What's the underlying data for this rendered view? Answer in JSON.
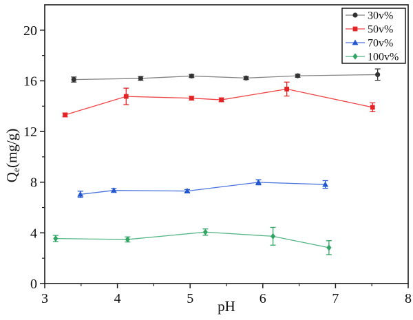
{
  "chart_data": {
    "type": "line",
    "title": "",
    "xlabel": "pH",
    "ylabel": "Qe(mg/g)",
    "ylabel_parts": {
      "base": "Q",
      "sub": "e",
      "rest": "(mg/g)"
    },
    "xlim": [
      3,
      8
    ],
    "ylim": [
      0,
      22
    ],
    "x_ticks": [
      3,
      4,
      5,
      6,
      7,
      8
    ],
    "y_ticks": [
      0,
      4,
      8,
      12,
      16,
      20
    ],
    "x_minor_step": 0.5,
    "y_minor_step": 2,
    "grid": false,
    "legend_position": "top-right",
    "axis_color": "#1a1a1a",
    "background_color": "#ffffff",
    "series": [
      {
        "name": "30v%",
        "marker": "circle",
        "color": "#333333",
        "line_color": "#848484",
        "x": [
          3.4,
          4.32,
          5.02,
          5.77,
          6.48,
          7.58
        ],
        "y": [
          16.1,
          16.19,
          16.38,
          16.22,
          16.4,
          16.49
        ],
        "yerr": [
          0.2,
          0.15,
          0.12,
          0.12,
          0.12,
          0.45
        ]
      },
      {
        "name": "50v%",
        "marker": "square",
        "color": "#e32426",
        "line_color": "#ef4445",
        "x": [
          3.28,
          4.12,
          5.02,
          5.43,
          6.33,
          7.51
        ],
        "y": [
          13.31,
          14.77,
          14.63,
          14.5,
          15.35,
          13.91
        ],
        "yerr": [
          0.15,
          0.65,
          0.15,
          0.15,
          0.55,
          0.35
        ]
      },
      {
        "name": "70v%",
        "marker": "triangle",
        "color": "#2457cd",
        "line_color": "#4a74dd",
        "x": [
          3.49,
          3.95,
          4.96,
          5.94,
          6.86
        ],
        "y": [
          7.04,
          7.35,
          7.3,
          7.99,
          7.82
        ],
        "yerr": [
          0.25,
          0.15,
          0.12,
          0.2,
          0.3
        ]
      },
      {
        "name": "100v%",
        "marker": "diamond",
        "color": "#2fa463",
        "line_color": "#52b584",
        "x": [
          3.15,
          4.14,
          5.21,
          6.14,
          6.91
        ],
        "y": [
          3.55,
          3.48,
          4.06,
          3.73,
          2.83
        ],
        "yerr": [
          0.25,
          0.2,
          0.25,
          0.7,
          0.55
        ]
      }
    ]
  }
}
